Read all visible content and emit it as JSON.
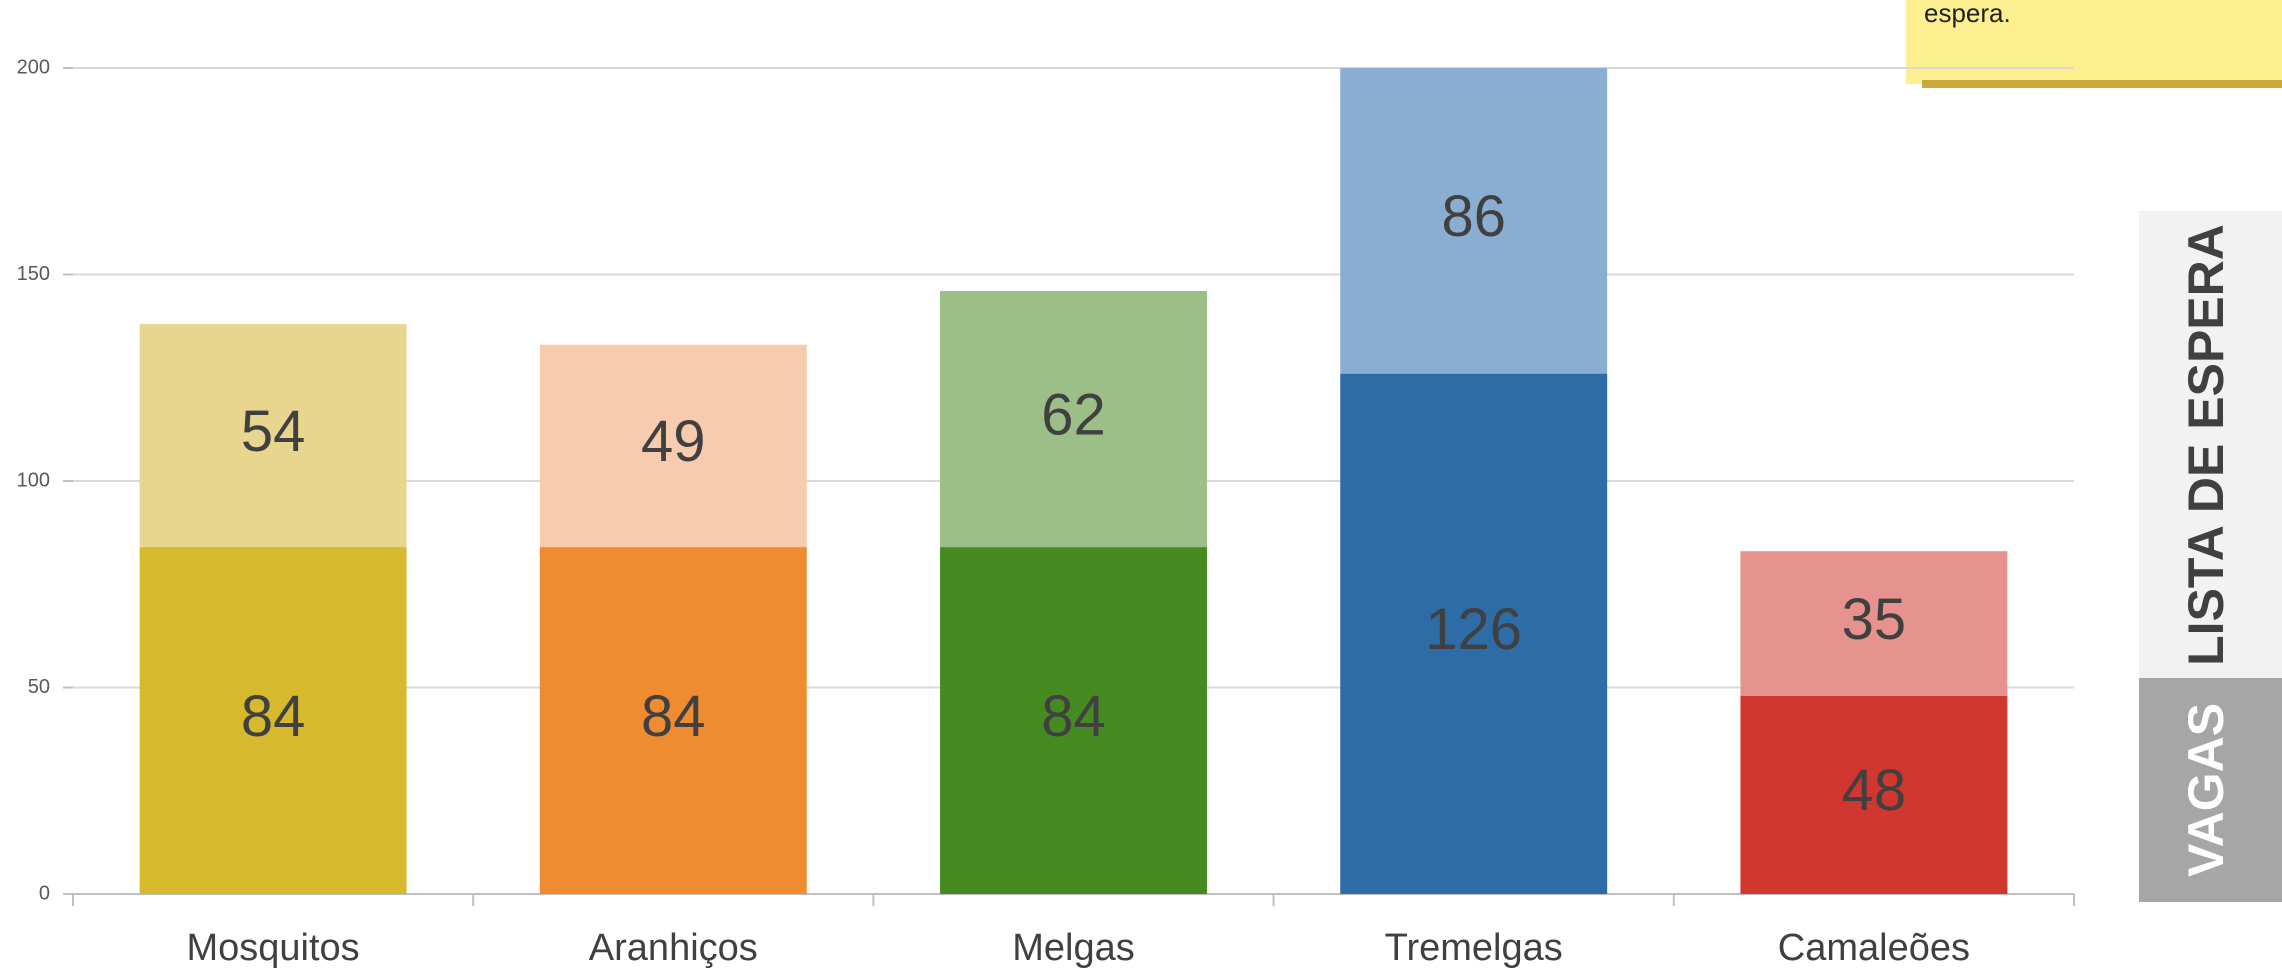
{
  "chart_data": {
    "type": "stacked_bar",
    "categories": [
      "Mosquitos",
      "Aranhiços",
      "Melgas",
      "Tremelgas",
      "Camaleões"
    ],
    "series": [
      {
        "name": "VAGAS",
        "values": [
          84,
          84,
          84,
          126,
          48
        ],
        "colors": [
          "#d7b92e",
          "#ef8c32",
          "#468b22",
          "#2e6ca7",
          "#d0372f"
        ]
      },
      {
        "name": "LISTA DE ESPERA",
        "values": [
          54,
          49,
          62,
          86,
          35
        ],
        "colors": [
          "#e8d68f",
          "#f7cbae",
          "#9bbf87",
          "#8aaed1",
          "#e6928e"
        ]
      }
    ],
    "ylim": [
      0,
      200
    ],
    "yticks": [
      0,
      50,
      100,
      150,
      200
    ],
    "grid": true,
    "note": "espera."
  }
}
